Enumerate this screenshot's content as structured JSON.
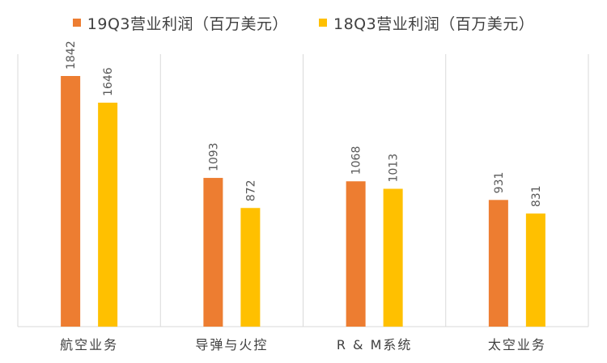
{
  "chart_data": {
    "type": "bar",
    "categories": [
      "航空业务",
      "导弹与火控",
      "R & M系统",
      "太空业务"
    ],
    "series": [
      {
        "name": "19Q3营业利润（百万美元）",
        "color": "#ED7D31",
        "values": [
          1842,
          1093,
          1068,
          931
        ]
      },
      {
        "name": "18Q3营业利润（百万美元）",
        "color": "#FFC000",
        "values": [
          1646,
          872,
          1013,
          831
        ]
      }
    ],
    "ylim": [
      0,
      2000
    ],
    "grid": "vertical category separators",
    "legend": "top-center",
    "data_labels": "rotated, above bars"
  }
}
